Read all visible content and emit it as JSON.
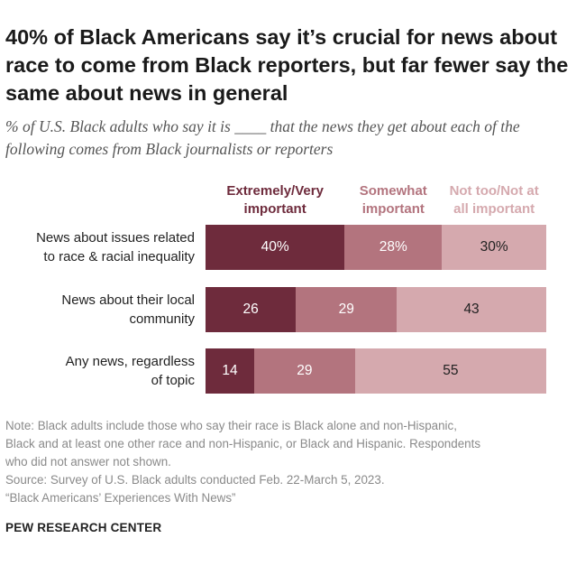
{
  "title": "40% of Black Americans say it’s crucial for news about race to come from Black reporters, but far fewer say the same about news in general",
  "subtitle": "% of U.S. Black adults who say it is ____ that the news they get about each of the following comes from Black journalists or reporters",
  "colors": {
    "extremely_very": "#6e2b3c",
    "somewhat": "#b3747e",
    "not_too": "#d5a9ae"
  },
  "chart_data": {
    "type": "bar",
    "orientation": "horizontal",
    "stacked": true,
    "categories": [
      "News about issues related to race & racial inequality",
      "News about their local community",
      "Any news, regardless of topic"
    ],
    "series": [
      {
        "name": "Extremely/Very important",
        "values": [
          40,
          26,
          14
        ],
        "labels": [
          "40%",
          "26",
          "14"
        ]
      },
      {
        "name": "Somewhat important",
        "values": [
          28,
          29,
          29
        ],
        "labels": [
          "28%",
          "29",
          "29"
        ]
      },
      {
        "name": "Not too/Not at all important",
        "values": [
          30,
          43,
          55
        ],
        "labels": [
          "30%",
          "43",
          "55"
        ]
      }
    ],
    "xlim": [
      0,
      100
    ],
    "grid": false,
    "legend_position": "top"
  },
  "notes": [
    "Note: Black adults include those who say their race is Black alone and non-Hispanic,",
    "Black and at least one other race and non-Hispanic, or Black and Hispanic. Respondents",
    "who did not answer not shown.",
    "Source: Survey of U.S. Black adults conducted Feb. 22-March 5, 2023.",
    "“Black Americans’ Experiences With News”"
  ],
  "footer": "PEW RESEARCH CENTER"
}
